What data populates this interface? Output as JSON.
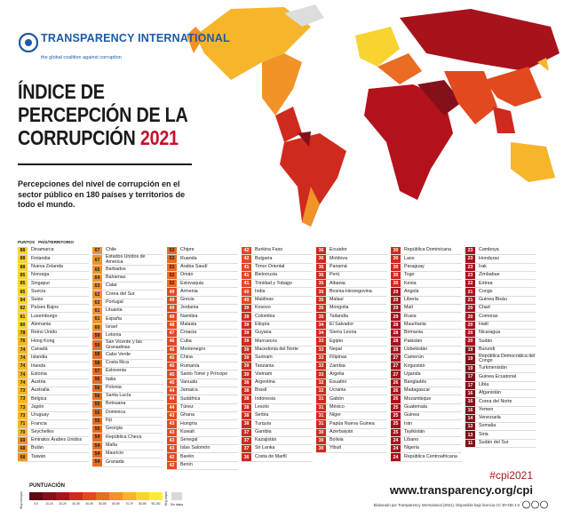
{
  "header": {
    "org": "TRANSPARENCY INTERNATIONAL",
    "tagline": "the global coalition against corruption",
    "title_lines": [
      "ÍNDICE DE",
      "PERCEPCIÓN DE LA",
      "CORRUPCIÓN"
    ],
    "year": "2021",
    "subtitle": "Percepciones del nivel de corrupción en el sector público en 180 países y territorios de todo el mundo."
  },
  "table": {
    "headers": [
      "PUNTOS",
      "PAÍS/TERRITORIO"
    ],
    "columns": [
      [
        [
          88,
          "Dinamarca"
        ],
        [
          88,
          "Finlandia"
        ],
        [
          88,
          "Nueva Zelanda"
        ],
        [
          85,
          "Noruega"
        ],
        [
          85,
          "Singapur"
        ],
        [
          85,
          "Suecia"
        ],
        [
          84,
          "Suiza"
        ],
        [
          82,
          "Países Bajos"
        ],
        [
          81,
          "Luxemburgo"
        ],
        [
          80,
          "Alemania"
        ],
        [
          78,
          "Reino Unido"
        ],
        [
          76,
          "Hong Kong"
        ],
        [
          74,
          "Canadá"
        ],
        [
          74,
          "Islandia"
        ],
        [
          74,
          "Irlanda"
        ],
        [
          74,
          "Estonia"
        ],
        [
          74,
          "Austria"
        ],
        [
          73,
          "Australia"
        ],
        [
          73,
          "Bélgica"
        ],
        [
          73,
          "Japón"
        ],
        [
          73,
          "Uruguay"
        ],
        [
          71,
          "Francia"
        ],
        [
          70,
          "Seychelles"
        ],
        [
          69,
          "Emiratos Árabes Unidos"
        ],
        [
          68,
          "Bután"
        ],
        [
          68,
          "Taiwán"
        ]
      ],
      [
        [
          67,
          "Chile"
        ],
        [
          67,
          "Estados Unidos de América"
        ],
        [
          65,
          "Barbados"
        ],
        [
          64,
          "Bahamas"
        ],
        [
          63,
          "Catar"
        ],
        [
          62,
          "Corea del Sur"
        ],
        [
          62,
          "Portugal"
        ],
        [
          61,
          "Lituania"
        ],
        [
          61,
          "España"
        ],
        [
          60,
          "Israel"
        ],
        [
          59,
          "Letonia"
        ],
        [
          59,
          "San Vicente y las Granadinas"
        ],
        [
          58,
          "Cabo Verde"
        ],
        [
          58,
          "Costa Rica"
        ],
        [
          57,
          "Eslovenia"
        ],
        [
          56,
          "Italia"
        ],
        [
          56,
          "Polonia"
        ],
        [
          56,
          "Santa Lucía"
        ],
        [
          55,
          "Botsuana"
        ],
        [
          55,
          "Dominica"
        ],
        [
          55,
          "Fiji"
        ],
        [
          55,
          "Georgia"
        ],
        [
          54,
          "República Checa"
        ],
        [
          54,
          "Malta"
        ],
        [
          54,
          "Mauricio"
        ],
        [
          54,
          "Granada"
        ]
      ],
      [
        [
          53,
          "Chipre"
        ],
        [
          53,
          "Ruanda"
        ],
        [
          53,
          "Arabia Saudí"
        ],
        [
          52,
          "Omán"
        ],
        [
          52,
          "Eslovaquia"
        ],
        [
          49,
          "Armenia"
        ],
        [
          49,
          "Grecia"
        ],
        [
          49,
          "Jordania"
        ],
        [
          49,
          "Namibia"
        ],
        [
          48,
          "Malasia"
        ],
        [
          47,
          "Croacia"
        ],
        [
          46,
          "Cuba"
        ],
        [
          46,
          "Montenegro"
        ],
        [
          45,
          "China"
        ],
        [
          45,
          "Rumanía"
        ],
        [
          45,
          "Santo Tomé y Príncipe"
        ],
        [
          45,
          "Vanuatu"
        ],
        [
          44,
          "Jamaica"
        ],
        [
          44,
          "Sudáfrica"
        ],
        [
          44,
          "Túnez"
        ],
        [
          43,
          "Ghana"
        ],
        [
          43,
          "Hungría"
        ],
        [
          43,
          "Kuwait"
        ],
        [
          43,
          "Senegal"
        ],
        [
          43,
          "Islas Salomón"
        ],
        [
          42,
          "Baréin"
        ],
        [
          42,
          "Benín"
        ]
      ],
      [
        [
          42,
          "Burkina Faso"
        ],
        [
          42,
          "Bulgaria"
        ],
        [
          41,
          "Timor Oriental"
        ],
        [
          41,
          "Bielorrusia"
        ],
        [
          41,
          "Trinidad y Tobago"
        ],
        [
          40,
          "India"
        ],
        [
          40,
          "Maldivas"
        ],
        [
          39,
          "Kosovo"
        ],
        [
          39,
          "Colombia"
        ],
        [
          39,
          "Etiopía"
        ],
        [
          39,
          "Guyana"
        ],
        [
          39,
          "Marruecos"
        ],
        [
          39,
          "Macedonia del Norte"
        ],
        [
          39,
          "Surinam"
        ],
        [
          39,
          "Tanzania"
        ],
        [
          39,
          "Vietnam"
        ],
        [
          38,
          "Argentina"
        ],
        [
          38,
          "Brasil"
        ],
        [
          38,
          "Indonesia"
        ],
        [
          38,
          "Lesoto"
        ],
        [
          38,
          "Serbia"
        ],
        [
          38,
          "Turquía"
        ],
        [
          37,
          "Gambia"
        ],
        [
          37,
          "Kazajistán"
        ],
        [
          37,
          "Sri Lanka"
        ],
        [
          36,
          "Costa de Marfil"
        ]
      ],
      [
        [
          36,
          "Ecuador"
        ],
        [
          36,
          "Moldova"
        ],
        [
          36,
          "Panamá"
        ],
        [
          36,
          "Perú"
        ],
        [
          35,
          "Albania"
        ],
        [
          35,
          "Bosnia-Herzegovina"
        ],
        [
          35,
          "Malaui"
        ],
        [
          35,
          "Mongolia"
        ],
        [
          35,
          "Tailandia"
        ],
        [
          34,
          "El Salvador"
        ],
        [
          34,
          "Sierra Leona"
        ],
        [
          33,
          "Egipto"
        ],
        [
          33,
          "Nepal"
        ],
        [
          33,
          "Filipinas"
        ],
        [
          33,
          "Zambia"
        ],
        [
          33,
          "Argelia"
        ],
        [
          32,
          "Esuatini"
        ],
        [
          32,
          "Ucrania"
        ],
        [
          31,
          "Gabón"
        ],
        [
          31,
          "México"
        ],
        [
          31,
          "Níger"
        ],
        [
          31,
          "Papúa Nueva Guinea"
        ],
        [
          30,
          "Azerbaiyán"
        ],
        [
          30,
          "Bolivia"
        ],
        [
          30,
          "Yibuti"
        ]
      ],
      [
        [
          30,
          "República Dominicana"
        ],
        [
          30,
          "Laos"
        ],
        [
          30,
          "Paraguay"
        ],
        [
          30,
          "Togo"
        ],
        [
          30,
          "Kenia"
        ],
        [
          29,
          "Angola"
        ],
        [
          29,
          "Liberia"
        ],
        [
          29,
          "Malí"
        ],
        [
          29,
          "Rusia"
        ],
        [
          28,
          "Mauritania"
        ],
        [
          28,
          "Birmania"
        ],
        [
          28,
          "Pakistán"
        ],
        [
          28,
          "Uzbekistán"
        ],
        [
          27,
          "Camerún"
        ],
        [
          27,
          "Kirguistán"
        ],
        [
          27,
          "Uganda"
        ],
        [
          26,
          "Bangladés"
        ],
        [
          26,
          "Madagascar"
        ],
        [
          26,
          "Mozambique"
        ],
        [
          25,
          "Guatemala"
        ],
        [
          25,
          "Guinea"
        ],
        [
          25,
          "Irán"
        ],
        [
          25,
          "Tayikistán"
        ],
        [
          24,
          "Líbano"
        ],
        [
          24,
          "Nigeria"
        ],
        [
          24,
          "República Centroafricana"
        ]
      ],
      [
        [
          23,
          "Camboya"
        ],
        [
          23,
          "Honduras"
        ],
        [
          23,
          "Irak"
        ],
        [
          23,
          "Zimbabue"
        ],
        [
          22,
          "Eritrea"
        ],
        [
          21,
          "Congo"
        ],
        [
          21,
          "Guinea Bisáu"
        ],
        [
          20,
          "Chad"
        ],
        [
          20,
          "Comoras"
        ],
        [
          20,
          "Haití"
        ],
        [
          20,
          "Nicaragua"
        ],
        [
          20,
          "Sudán"
        ],
        [
          19,
          "Burundi"
        ],
        [
          19,
          "República Democrática del Congo"
        ],
        [
          19,
          "Turkmenistán"
        ],
        [
          17,
          "Guinea Ecuatorial"
        ],
        [
          17,
          "Libia"
        ],
        [
          16,
          "Afganistán"
        ],
        [
          16,
          "Corea del Norte"
        ],
        [
          16,
          "Yemen"
        ],
        [
          14,
          "Venezuela"
        ],
        [
          13,
          "Somalia"
        ],
        [
          13,
          "Siria"
        ],
        [
          11,
          "Sudán del Sur"
        ]
      ]
    ]
  },
  "legend": {
    "title": "PUNTUACIÓN",
    "low": "Muy corrupto",
    "high": "Muy limpio",
    "no_data": "Sin datos",
    "bins": [
      {
        "label": "0-9",
        "color": "#5e0b10"
      },
      {
        "label": "10-19",
        "color": "#84101a"
      },
      {
        "label": "20-29",
        "color": "#a8121c"
      },
      {
        "label": "30-39",
        "color": "#cf2a1e"
      },
      {
        "label": "40-49",
        "color": "#e2491f"
      },
      {
        "label": "50-59",
        "color": "#ea6b22"
      },
      {
        "label": "60-69",
        "color": "#f19326"
      },
      {
        "label": "70-79",
        "color": "#f6b52b"
      },
      {
        "label": "80-89",
        "color": "#f9d32f"
      },
      {
        "label": "90-100",
        "color": "#fdeb3a"
      }
    ]
  },
  "footer": {
    "hashtag": "#cpi2021",
    "url": "www.transparency.org/cpi",
    "credit": "Elaborado por Transparency International (2021). Disponible bajo licencia CC BY-ND 4.0"
  }
}
